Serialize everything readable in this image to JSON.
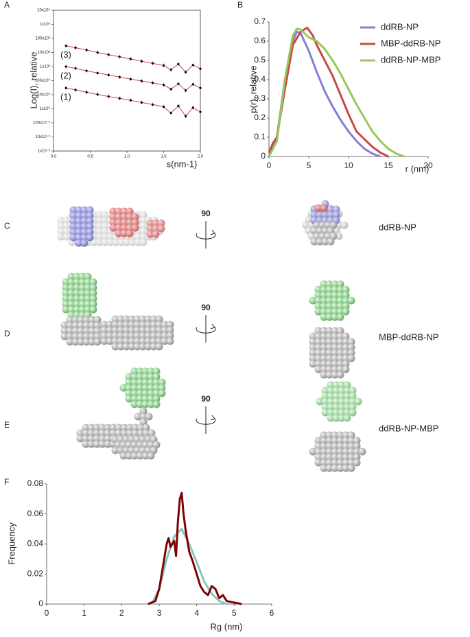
{
  "chart_data": [
    {
      "type": "line",
      "panel": "A",
      "markers": true,
      "frame": true,
      "ylog": true,
      "x_label": "s(nm-1)",
      "y_label": "Log(I), relative",
      "xlim": [
        0,
        2
      ],
      "xticks": [
        {
          "value": 0,
          "label": "0.0"
        },
        {
          "value": 0.5,
          "label": "0.5"
        },
        {
          "value": 1,
          "label": "1.0"
        },
        {
          "value": 1.5,
          "label": "1.5"
        },
        {
          "value": 2,
          "label": "2.0"
        }
      ],
      "ylim": [
        0.001,
        10000000
      ],
      "yticks": [
        {
          "value": 10000000,
          "label": "10x10⁶"
        },
        {
          "value": 1000000,
          "label": "1x10⁶"
        },
        {
          "value": 100000,
          "label": "100x10³"
        },
        {
          "value": 10000,
          "label": "10x10³"
        },
        {
          "value": 1000,
          "label": "1x10³"
        },
        {
          "value": 100,
          "label": "100x10⁰"
        },
        {
          "value": 10,
          "label": "10x10⁰"
        },
        {
          "value": 1,
          "label": "1x10⁰"
        },
        {
          "value": 0.1,
          "label": "100x10⁻³"
        },
        {
          "value": 0.01,
          "label": "10x10⁻³"
        },
        {
          "value": 0.001,
          "label": "1x10⁻³"
        }
      ],
      "x": [
        0.17,
        0.3,
        0.45,
        0.6,
        0.75,
        0.9,
        1.05,
        1.2,
        1.35,
        1.5,
        1.6,
        1.7,
        1.8,
        1.9,
        2.0
      ],
      "series": [
        {
          "name": "(3)",
          "color": "#000000",
          "line_color": "#d04040",
          "values": [
            30000,
            22000,
            15000,
            10000,
            7000,
            5000,
            3500,
            2400,
            1700,
            1200,
            600,
            1500,
            400,
            1300,
            700
          ]
        },
        {
          "name": "(2)",
          "color": "#000000",
          "line_color": "#d04040",
          "values": [
            1000,
            750,
            500,
            350,
            250,
            180,
            130,
            95,
            70,
            50,
            25,
            60,
            20,
            55,
            30
          ]
        },
        {
          "name": "(1)",
          "color": "#000000",
          "line_color": "#d04040",
          "values": [
            30,
            22,
            15,
            10.5,
            7.5,
            5.5,
            4,
            2.8,
            2,
            1.4,
            0.5,
            1.6,
            0.3,
            1.2,
            0.6
          ]
        }
      ]
    },
    {
      "type": "line",
      "panel": "B",
      "legend": "top-right",
      "x_label": "r (nm)",
      "y_label": "p(r), relative",
      "xlim": [
        0,
        20
      ],
      "xticks": [
        0,
        5,
        10,
        15,
        20
      ],
      "ylim": [
        0,
        0.7
      ],
      "yticks": [
        0,
        0.1,
        0.2,
        0.3,
        0.4,
        0.5,
        0.6,
        0.7
      ],
      "series": [
        {
          "name": "ddRB-NP",
          "color": "#8080d8",
          "x": [
            0,
            0.5,
            1,
            2,
            3,
            3.5,
            4,
            5,
            6,
            7,
            8,
            9,
            10,
            11,
            12,
            13,
            14
          ],
          "values": [
            0,
            0.05,
            0.1,
            0.4,
            0.6,
            0.65,
            0.64,
            0.55,
            0.44,
            0.34,
            0.26,
            0.19,
            0.13,
            0.08,
            0.04,
            0.015,
            0
          ]
        },
        {
          "name": "MBP-ddRB-NP",
          "color": "#c84848",
          "x": [
            0,
            0.5,
            1,
            2,
            3,
            4,
            4.8,
            5.5,
            6,
            7,
            8,
            9,
            10,
            11,
            11.5,
            12,
            13,
            14,
            15
          ],
          "values": [
            0.02,
            0.07,
            0.1,
            0.35,
            0.58,
            0.65,
            0.67,
            0.63,
            0.58,
            0.5,
            0.42,
            0.32,
            0.22,
            0.13,
            0.11,
            0.09,
            0.05,
            0.02,
            0
          ]
        },
        {
          "name": "ddRB-NP-MBP",
          "color": "#98c858",
          "x": [
            0,
            0.5,
            1,
            2,
            3,
            3.5,
            4,
            5,
            6,
            7,
            8,
            9,
            10,
            11,
            12,
            13,
            14,
            15,
            16,
            17
          ],
          "values": [
            0,
            0.04,
            0.08,
            0.4,
            0.63,
            0.665,
            0.66,
            0.62,
            0.6,
            0.56,
            0.5,
            0.43,
            0.35,
            0.27,
            0.2,
            0.13,
            0.08,
            0.04,
            0.015,
            0
          ]
        }
      ]
    },
    {
      "type": "line",
      "panel": "F",
      "x_label": "Rg (nm)",
      "y_label": "Frequency",
      "xlim": [
        0,
        6
      ],
      "xticks": [
        0,
        1,
        2,
        3,
        4,
        5,
        6
      ],
      "ylim": [
        0,
        0.08
      ],
      "yticks": [
        0,
        0.02,
        0.04,
        0.06,
        0.08
      ],
      "series": [
        {
          "color": "#80c8c8",
          "x": [
            2.8,
            3,
            3.2,
            3.4,
            3.6,
            3.8,
            4,
            4.2,
            4.4,
            4.6,
            4.8
          ],
          "values": [
            0,
            0.01,
            0.03,
            0.045,
            0.05,
            0.04,
            0.028,
            0.015,
            0.007,
            0.002,
            0
          ]
        },
        {
          "color": "#800000",
          "x": [
            2.7,
            2.9,
            3.0,
            3.1,
            3.2,
            3.25,
            3.3,
            3.4,
            3.45,
            3.5,
            3.55,
            3.6,
            3.65,
            3.7,
            3.8,
            3.9,
            4.0,
            4.1,
            4.2,
            4.3,
            4.4,
            4.5,
            4.6,
            4.7,
            4.8,
            5.0,
            5.2
          ],
          "values": [
            0,
            0.002,
            0.01,
            0.025,
            0.04,
            0.044,
            0.038,
            0.042,
            0.032,
            0.055,
            0.07,
            0.074,
            0.06,
            0.05,
            0.035,
            0.028,
            0.02,
            0.012,
            0.008,
            0.006,
            0.012,
            0.01,
            0.004,
            0.006,
            0.002,
            0.001,
            0
          ]
        }
      ]
    }
  ],
  "models": [
    {
      "panel": "C",
      "rotation": "90",
      "name": "ddRB-NP"
    },
    {
      "panel": "D",
      "rotation": "90",
      "name": "MBP-ddRB-NP"
    },
    {
      "panel": "E",
      "rotation": "90",
      "name": "ddRB-NP-MBP"
    }
  ]
}
